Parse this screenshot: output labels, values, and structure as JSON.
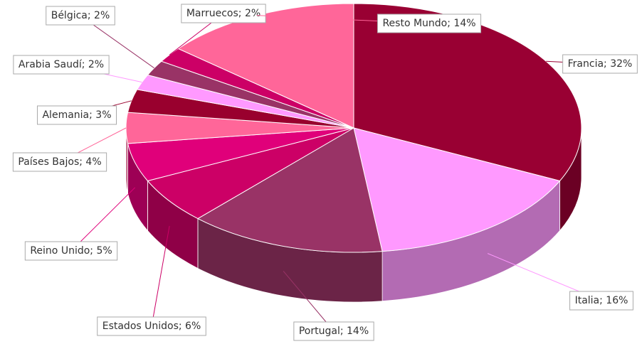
{
  "chart_data": {
    "type": "pie3d",
    "values": [
      32,
      16,
      14,
      6,
      5,
      4,
      3,
      2,
      2,
      2,
      14
    ],
    "value_labels": [
      "Francia; 32%",
      "Italia; 16%",
      "Portugal; 14%",
      "Estados Unidos; 6%",
      "Reino Unido; 5%",
      "Países Bajos; 4%",
      "Alemania; 3%",
      "Arabia Saudí; 2%",
      "Bélgica; 2%",
      "Marruecos; 2%",
      "Resto Mundo; 14%"
    ],
    "colors": [
      "#990033",
      "#ff99ff",
      "#993366",
      "#cc0066",
      "#e0007a",
      "#ff6699",
      "#99002e",
      "#ff99ff",
      "#993366",
      "#cc0066",
      "#ff6699",
      "#660033"
    ]
  }
}
